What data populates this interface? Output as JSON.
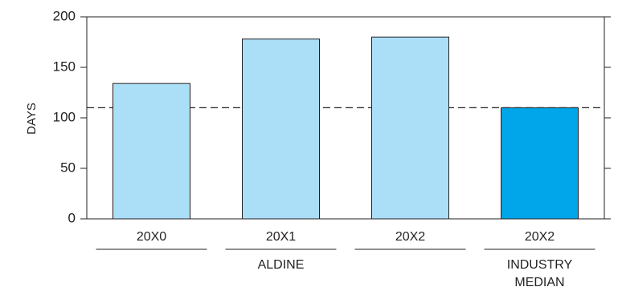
{
  "chart_data": {
    "type": "bar",
    "ylabel": "DAYS",
    "ylim": [
      0,
      200
    ],
    "yticks": [
      0,
      50,
      100,
      150,
      200
    ],
    "categories": [
      "20X0",
      "20X1",
      "20X2",
      "20X2"
    ],
    "values": [
      134,
      178,
      180,
      110
    ],
    "bar_colors": [
      "#abdff8",
      "#abdff8",
      "#abdff8",
      "#00a6e9"
    ],
    "groups": [
      {
        "label": "ALDINE",
        "categories": [
          0,
          1,
          2
        ]
      },
      {
        "label": "INDUSTRY MEDIAN",
        "lines": [
          "INDUSTRY",
          "MEDIAN"
        ],
        "categories": [
          3
        ]
      }
    ],
    "reference_line": {
      "value": 110,
      "style": "dashed"
    },
    "grid": false
  }
}
